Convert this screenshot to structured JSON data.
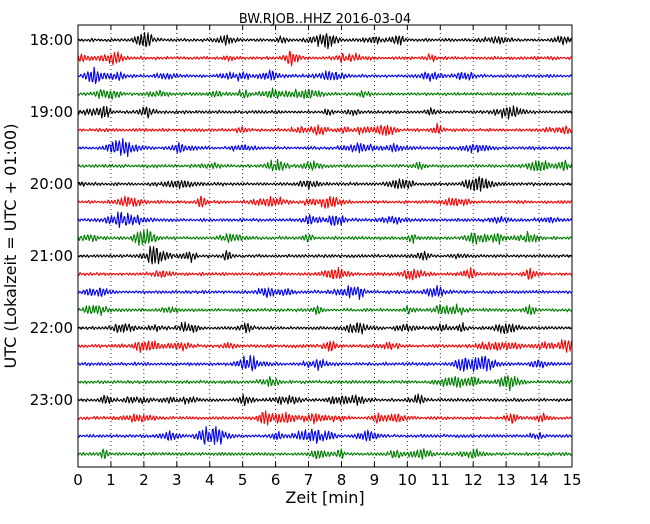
{
  "chart_data": {
    "type": "line",
    "title": "BW.RJOB..HHZ 2016-03-04",
    "xlabel": "Zeit  [min]",
    "ylabel": "UTC (Lokalzeit = UTC + 01:00)",
    "xlim": [
      0,
      15
    ],
    "x_ticks": [
      0,
      1,
      2,
      3,
      4,
      5,
      6,
      7,
      8,
      9,
      10,
      11,
      12,
      13,
      14,
      15
    ],
    "y_tick_labels": [
      "18:00",
      "19:00",
      "20:00",
      "21:00",
      "22:00",
      "23:00"
    ],
    "grid": {
      "vertical": true,
      "style": "dotted"
    },
    "trace_colors": [
      "#000000",
      "#ff0000",
      "#0000ff",
      "#008000"
    ],
    "traces": [
      {
        "start": "18:00",
        "color": "#000000"
      },
      {
        "start": "18:15",
        "color": "#ff0000"
      },
      {
        "start": "18:30",
        "color": "#0000ff"
      },
      {
        "start": "18:45",
        "color": "#008000"
      },
      {
        "start": "19:00",
        "color": "#000000"
      },
      {
        "start": "19:15",
        "color": "#ff0000"
      },
      {
        "start": "19:30",
        "color": "#0000ff"
      },
      {
        "start": "19:45",
        "color": "#008000"
      },
      {
        "start": "20:00",
        "color": "#000000"
      },
      {
        "start": "20:15",
        "color": "#ff0000"
      },
      {
        "start": "20:30",
        "color": "#0000ff"
      },
      {
        "start": "20:45",
        "color": "#008000"
      },
      {
        "start": "21:00",
        "color": "#000000"
      },
      {
        "start": "21:15",
        "color": "#ff0000"
      },
      {
        "start": "21:30",
        "color": "#0000ff"
      },
      {
        "start": "21:45",
        "color": "#008000"
      },
      {
        "start": "22:00",
        "color": "#000000"
      },
      {
        "start": "22:15",
        "color": "#ff0000"
      },
      {
        "start": "22:30",
        "color": "#0000ff"
      },
      {
        "start": "22:45",
        "color": "#008000"
      },
      {
        "start": "23:00",
        "color": "#000000"
      },
      {
        "start": "23:15",
        "color": "#ff0000"
      },
      {
        "start": "23:30",
        "color": "#0000ff"
      },
      {
        "start": "23:45",
        "color": "#008000"
      }
    ]
  }
}
